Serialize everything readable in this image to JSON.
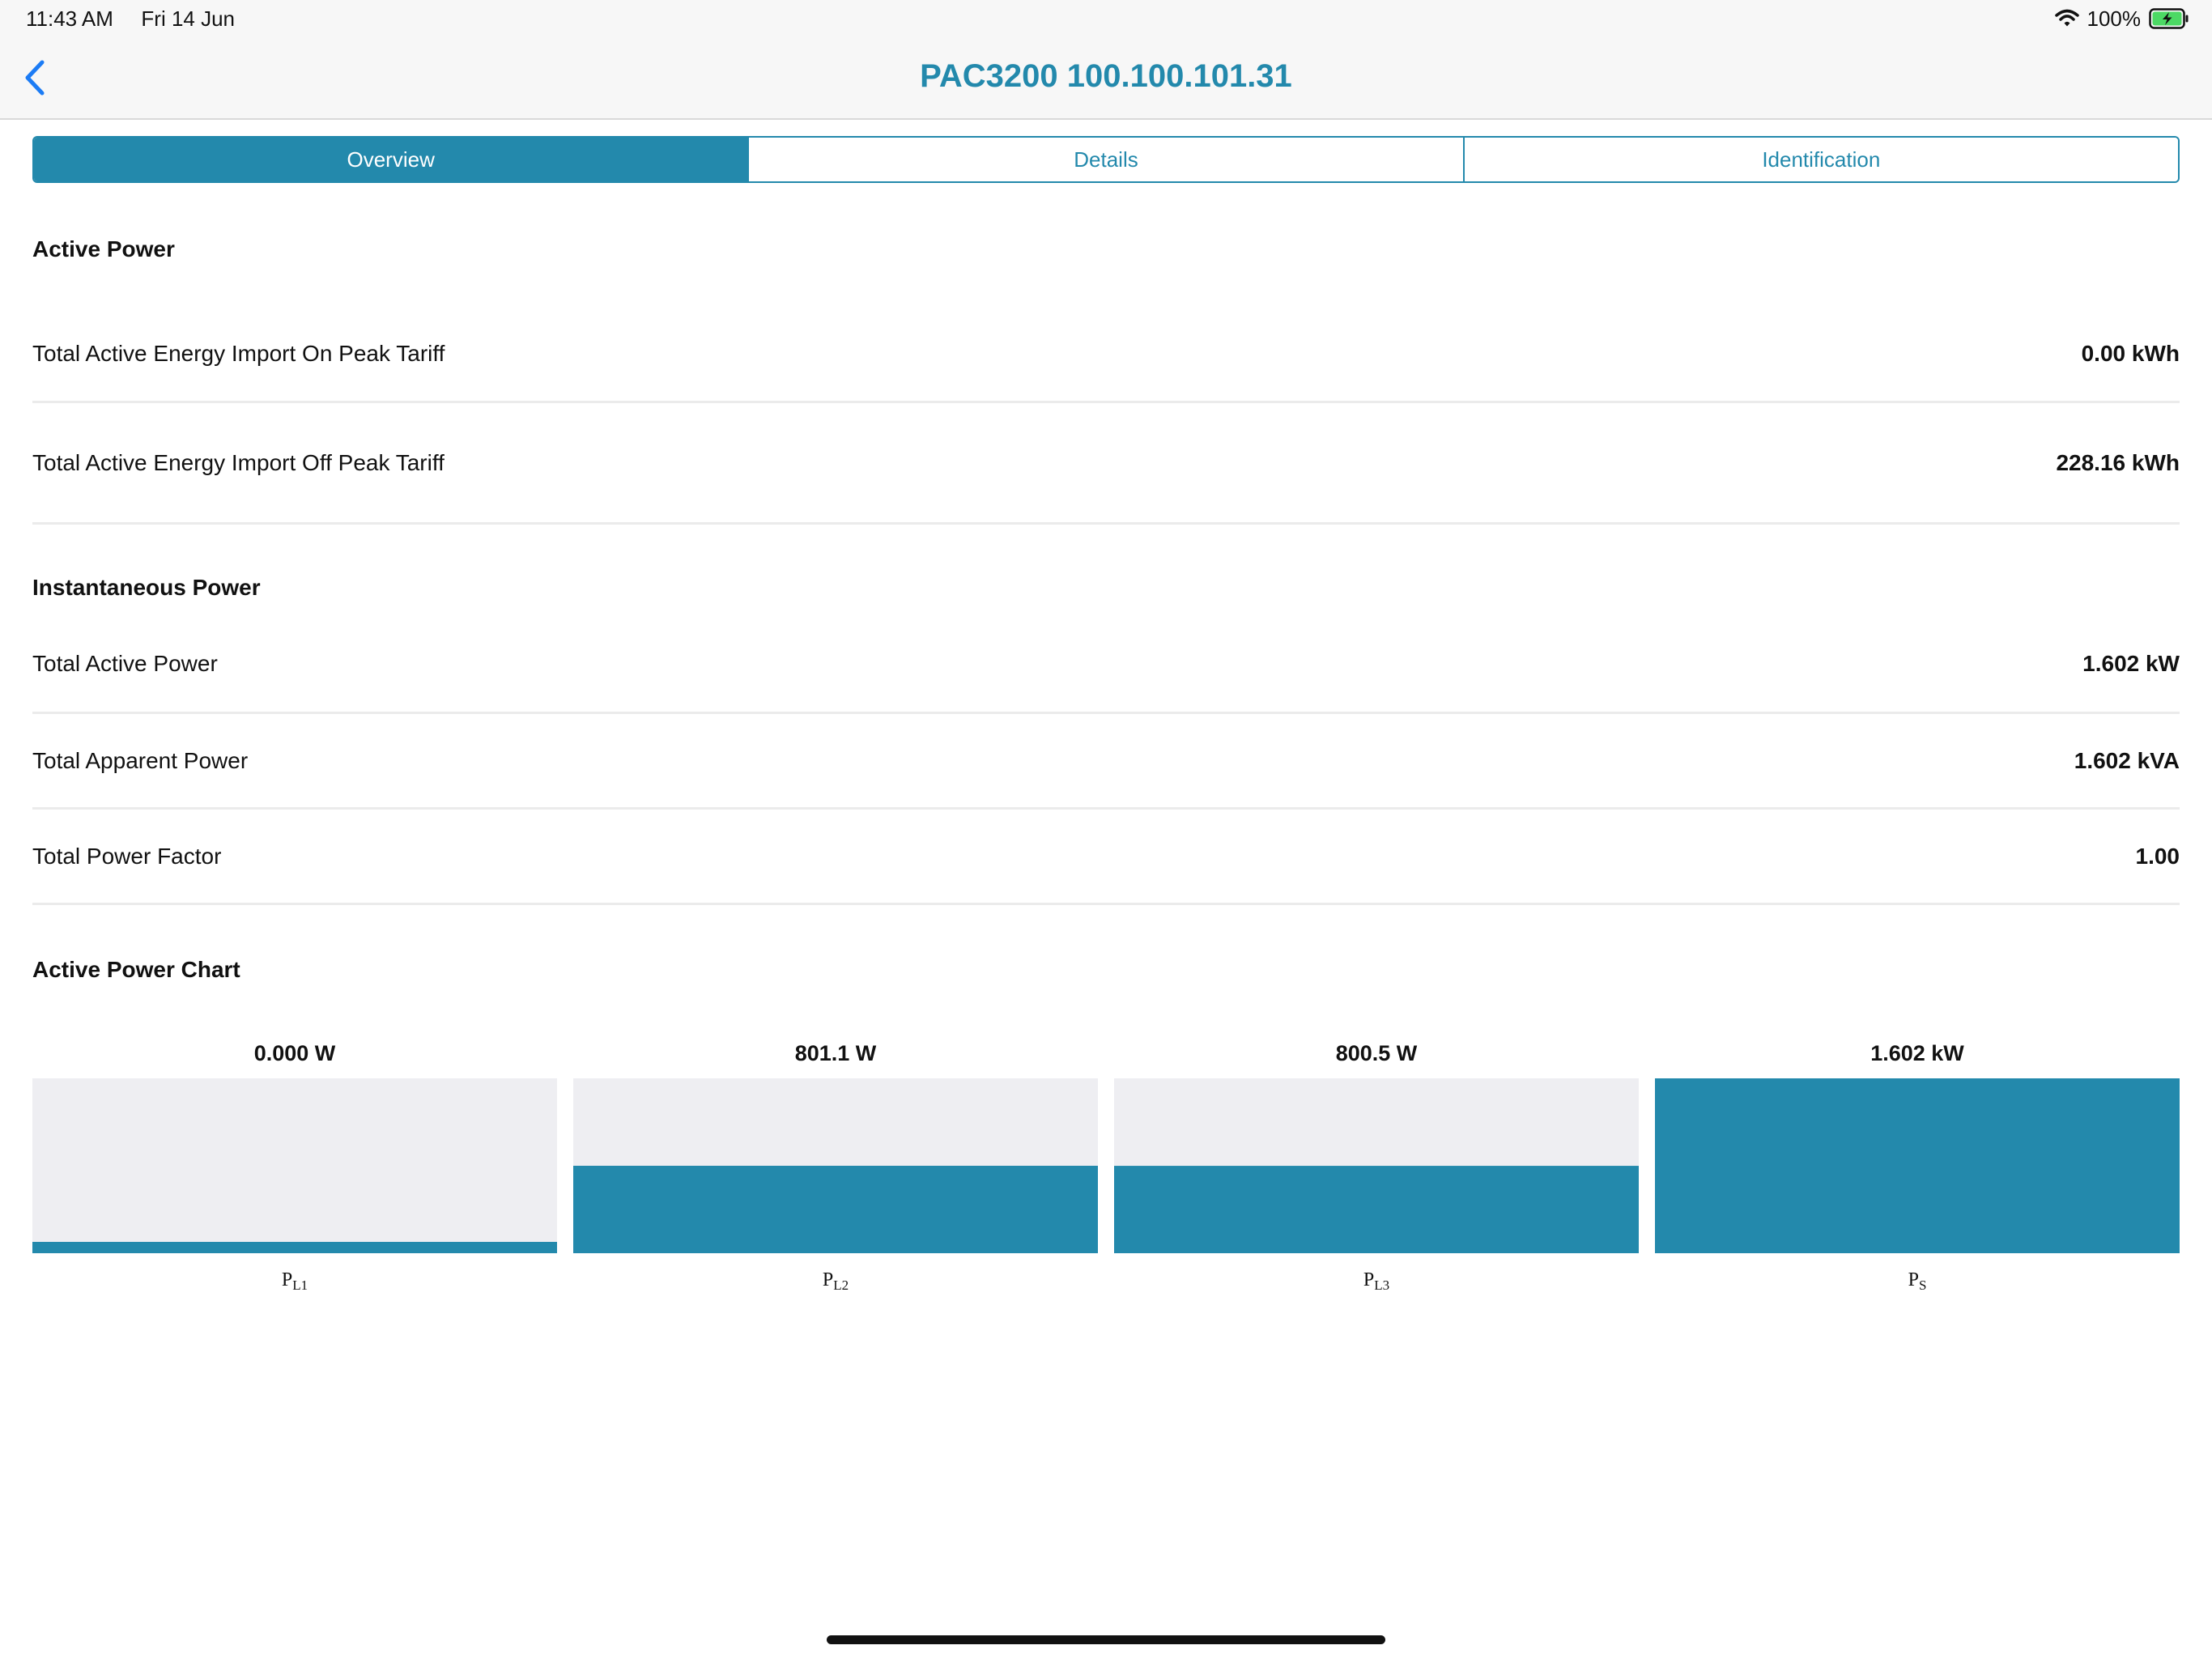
{
  "status_bar": {
    "time": "11:43 AM",
    "date": "Fri 14 Jun",
    "battery_percent": "100%",
    "battery_level": 1.0,
    "icons": [
      "wifi-icon",
      "battery-charging-icon"
    ]
  },
  "nav": {
    "title": "PAC3200 100.100.101.31",
    "back_icon": "chevron-left-icon"
  },
  "tabs": [
    {
      "label": "Overview",
      "selected": true
    },
    {
      "label": "Details",
      "selected": false
    },
    {
      "label": "Identification",
      "selected": false
    }
  ],
  "active_power": {
    "title": "Active Power",
    "rows": [
      {
        "label": "Total Active Energy Import On Peak Tariff",
        "value": "0.00 kWh"
      },
      {
        "label": "Total Active Energy Import Off Peak Tariff",
        "value": "228.16 kWh"
      }
    ]
  },
  "instantaneous_power": {
    "title": "Instantaneous Power",
    "rows": [
      {
        "label": "Total Active Power",
        "value": "1.602 kW"
      },
      {
        "label": "Total Apparent Power",
        "value": "1.602 kVA"
      },
      {
        "label": "Total Power Factor",
        "value": "1.00"
      }
    ]
  },
  "chart_section": {
    "title": "Active Power Chart"
  },
  "colors": {
    "accent": "#2389ac",
    "bar_track": "#eeeef2",
    "divider": "#ebebeb",
    "back_icon": "#1c7cf5"
  },
  "chart_data": {
    "type": "bar",
    "categories": [
      "PL1",
      "PL2",
      "PL3",
      "PS"
    ],
    "category_labels": [
      {
        "main": "P",
        "sub": "L1"
      },
      {
        "main": "P",
        "sub": "L2"
      },
      {
        "main": "P",
        "sub": "L3"
      },
      {
        "main": "P",
        "sub": "S"
      }
    ],
    "data_labels": [
      "0.000 W",
      "801.1 W",
      "800.5 W",
      "1.602 kW"
    ],
    "values": [
      0,
      801.1,
      800.5,
      1602
    ],
    "unit": "W",
    "ylim": [
      0,
      1602
    ],
    "grid": false,
    "legend": "none"
  }
}
